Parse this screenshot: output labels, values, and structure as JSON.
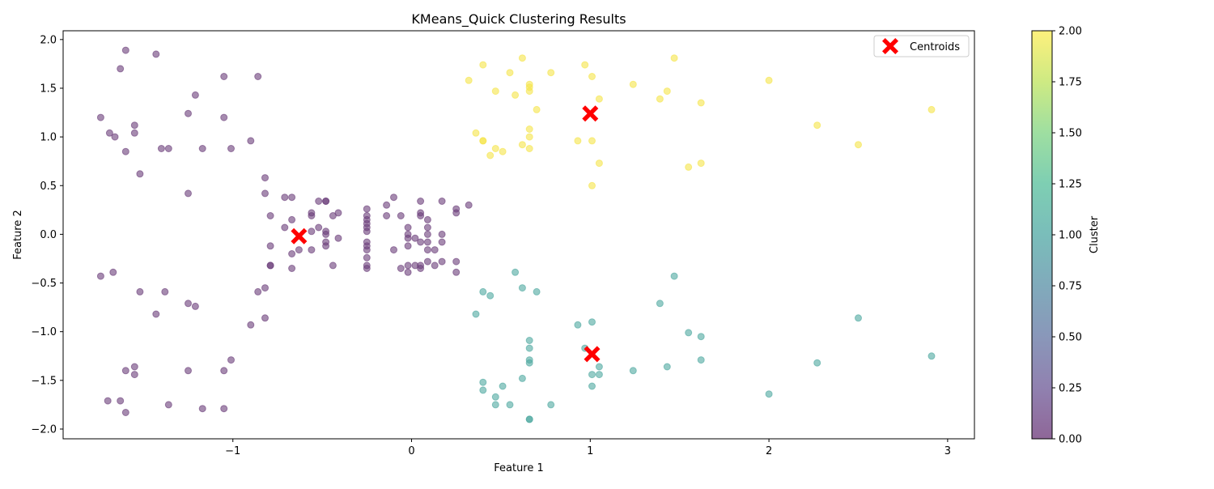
{
  "chart_data": {
    "type": "scatter",
    "title": "KMeans_Quick Clustering Results",
    "xlabel": "Feature 1",
    "ylabel": "Feature 2",
    "xlim": [
      -1.95,
      3.15
    ],
    "ylim": [
      -2.1,
      2.09
    ],
    "xticks": [
      -1,
      0,
      1,
      2,
      3
    ],
    "xtick_labels": [
      "−1",
      "0",
      "1",
      "2",
      "3"
    ],
    "yticks": [
      -2.0,
      -1.5,
      -1.0,
      -0.5,
      0.0,
      0.5,
      1.0,
      1.5,
      2.0
    ],
    "ytick_labels": [
      "−2.0",
      "−1.5",
      "−1.0",
      "−0.5",
      "0.0",
      "0.5",
      "1.0",
      "1.5",
      "2.0"
    ],
    "grid": false,
    "legend": {
      "position": "upper right",
      "entries": [
        "Centroids"
      ]
    },
    "colorbar": {
      "label": "Cluster",
      "range": [
        0,
        2
      ],
      "ticks": [
        0,
        0.25,
        0.5,
        0.75,
        1.0,
        1.25,
        1.5,
        1.75,
        2.0
      ],
      "tick_labels": [
        "0.00",
        "0.25",
        "0.50",
        "0.75",
        "1.00",
        "1.25",
        "1.50",
        "1.75",
        "2.00"
      ],
      "colormap": "viridis"
    },
    "cluster_colors": [
      "#6a3d7a",
      "#4fa8a0",
      "#f5e54a"
    ],
    "point_alpha": 0.6,
    "series": [
      {
        "cluster": 0,
        "points": [
          [
            -1.6,
            1.89
          ],
          [
            -1.43,
            1.85
          ],
          [
            -1.63,
            1.7
          ],
          [
            -1.05,
            1.62
          ],
          [
            -0.86,
            1.62
          ],
          [
            -1.21,
            1.43
          ],
          [
            -1.74,
            1.2
          ],
          [
            -1.25,
            1.24
          ],
          [
            -1.05,
            1.2
          ],
          [
            -1.55,
            1.12
          ],
          [
            -1.69,
            1.04
          ],
          [
            -1.55,
            1.04
          ],
          [
            -1.66,
            1.0
          ],
          [
            -0.9,
            0.96
          ],
          [
            -1.6,
            0.85
          ],
          [
            -1.4,
            0.88
          ],
          [
            -1.36,
            0.88
          ],
          [
            -1.17,
            0.88
          ],
          [
            -1.01,
            0.88
          ],
          [
            -1.52,
            0.62
          ],
          [
            -0.82,
            0.58
          ],
          [
            -1.25,
            0.42
          ],
          [
            -0.82,
            0.42
          ],
          [
            -0.71,
            0.38
          ],
          [
            -0.67,
            0.38
          ],
          [
            -0.52,
            0.34
          ],
          [
            -0.48,
            0.34
          ],
          [
            -0.48,
            0.34
          ],
          [
            -0.56,
            0.22
          ],
          [
            -0.56,
            0.19
          ],
          [
            -0.79,
            0.19
          ],
          [
            -0.44,
            0.19
          ],
          [
            -0.41,
            0.22
          ],
          [
            -0.67,
            0.15
          ],
          [
            -0.71,
            0.07
          ],
          [
            -0.52,
            0.07
          ],
          [
            -0.56,
            0.03
          ],
          [
            -0.48,
            0.03
          ],
          [
            -0.48,
            0.0
          ],
          [
            -0.41,
            -0.04
          ],
          [
            -0.48,
            -0.08
          ],
          [
            -0.48,
            -0.12
          ],
          [
            -0.79,
            -0.12
          ],
          [
            -0.56,
            -0.16
          ],
          [
            -0.63,
            -0.16
          ],
          [
            -0.67,
            -0.2
          ],
          [
            -0.79,
            -0.32
          ],
          [
            -0.79,
            -0.32
          ],
          [
            -0.44,
            -0.32
          ],
          [
            -0.67,
            -0.35
          ],
          [
            -0.25,
            0.26
          ],
          [
            -0.25,
            0.19
          ],
          [
            -0.25,
            0.15
          ],
          [
            -0.25,
            0.11
          ],
          [
            -0.25,
            0.07
          ],
          [
            -0.25,
            0.03
          ],
          [
            -0.25,
            -0.08
          ],
          [
            -0.25,
            -0.12
          ],
          [
            -0.25,
            -0.16
          ],
          [
            -0.25,
            -0.24
          ],
          [
            -0.25,
            -0.32
          ],
          [
            -0.25,
            -0.35
          ],
          [
            -0.14,
            0.3
          ],
          [
            -0.1,
            0.38
          ],
          [
            -0.14,
            0.19
          ],
          [
            -0.06,
            0.19
          ],
          [
            -0.1,
            -0.16
          ],
          [
            -0.06,
            -0.35
          ],
          [
            -0.02,
            0.07
          ],
          [
            -0.02,
            0.0
          ],
          [
            -0.02,
            -0.04
          ],
          [
            -0.02,
            -0.12
          ],
          [
            -0.02,
            -0.32
          ],
          [
            -0.02,
            -0.39
          ],
          [
            0.02,
            -0.04
          ],
          [
            0.02,
            -0.32
          ],
          [
            0.05,
            0.34
          ],
          [
            0.05,
            0.22
          ],
          [
            0.05,
            0.19
          ],
          [
            0.05,
            -0.08
          ],
          [
            0.05,
            -0.32
          ],
          [
            0.05,
            -0.35
          ],
          [
            0.09,
            0.15
          ],
          [
            0.09,
            0.07
          ],
          [
            0.09,
            0.0
          ],
          [
            0.09,
            -0.08
          ],
          [
            0.09,
            -0.16
          ],
          [
            0.09,
            -0.28
          ],
          [
            0.13,
            -0.16
          ],
          [
            0.13,
            -0.32
          ],
          [
            0.17,
            0.34
          ],
          [
            0.17,
            0.0
          ],
          [
            0.17,
            -0.08
          ],
          [
            0.17,
            -0.28
          ],
          [
            0.25,
            0.26
          ],
          [
            0.25,
            0.22
          ],
          [
            0.25,
            -0.28
          ],
          [
            0.25,
            -0.39
          ],
          [
            0.32,
            0.3
          ],
          [
            -1.74,
            -0.43
          ],
          [
            -1.67,
            -0.39
          ],
          [
            -1.52,
            -0.59
          ],
          [
            -1.38,
            -0.59
          ],
          [
            -0.86,
            -0.59
          ],
          [
            -0.82,
            -0.55
          ],
          [
            -1.25,
            -0.71
          ],
          [
            -1.21,
            -0.74
          ],
          [
            -1.43,
            -0.82
          ],
          [
            -0.82,
            -0.86
          ],
          [
            -0.9,
            -0.93
          ],
          [
            -1.01,
            -1.29
          ],
          [
            -1.55,
            -1.36
          ],
          [
            -1.6,
            -1.4
          ],
          [
            -1.25,
            -1.4
          ],
          [
            -1.05,
            -1.4
          ],
          [
            -1.55,
            -1.44
          ],
          [
            -1.7,
            -1.71
          ],
          [
            -1.63,
            -1.71
          ],
          [
            -1.36,
            -1.75
          ],
          [
            -1.17,
            -1.79
          ],
          [
            -1.05,
            -1.79
          ],
          [
            -1.6,
            -1.83
          ]
        ]
      },
      {
        "cluster": 1,
        "points": [
          [
            0.58,
            -0.39
          ],
          [
            1.47,
            -0.43
          ],
          [
            0.62,
            -0.55
          ],
          [
            0.4,
            -0.59
          ],
          [
            0.7,
            -0.59
          ],
          [
            0.44,
            -0.63
          ],
          [
            1.39,
            -0.71
          ],
          [
            0.36,
            -0.82
          ],
          [
            2.5,
            -0.86
          ],
          [
            1.01,
            -0.9
          ],
          [
            0.93,
            -0.93
          ],
          [
            1.55,
            -1.01
          ],
          [
            1.62,
            -1.05
          ],
          [
            0.66,
            -1.09
          ],
          [
            0.97,
            -1.17
          ],
          [
            0.66,
            -1.17
          ],
          [
            2.91,
            -1.25
          ],
          [
            1.62,
            -1.29
          ],
          [
            0.66,
            -1.29
          ],
          [
            0.66,
            -1.32
          ],
          [
            2.27,
            -1.32
          ],
          [
            1.05,
            -1.36
          ],
          [
            1.43,
            -1.36
          ],
          [
            1.24,
            -1.4
          ],
          [
            1.01,
            -1.44
          ],
          [
            1.05,
            -1.44
          ],
          [
            0.62,
            -1.48
          ],
          [
            0.4,
            -1.52
          ],
          [
            1.01,
            -1.56
          ],
          [
            0.51,
            -1.56
          ],
          [
            0.4,
            -1.6
          ],
          [
            2.0,
            -1.64
          ],
          [
            0.47,
            -1.67
          ],
          [
            0.47,
            -1.75
          ],
          [
            0.55,
            -1.75
          ],
          [
            0.78,
            -1.75
          ],
          [
            0.66,
            -1.9
          ],
          [
            0.66,
            -1.9
          ]
        ]
      },
      {
        "cluster": 2,
        "points": [
          [
            0.62,
            1.81
          ],
          [
            1.47,
            1.81
          ],
          [
            0.4,
            1.74
          ],
          [
            0.97,
            1.74
          ],
          [
            0.55,
            1.66
          ],
          [
            0.78,
            1.66
          ],
          [
            1.01,
            1.62
          ],
          [
            0.32,
            1.58
          ],
          [
            2.0,
            1.58
          ],
          [
            0.66,
            1.54
          ],
          [
            1.24,
            1.54
          ],
          [
            0.66,
            1.51
          ],
          [
            0.47,
            1.47
          ],
          [
            0.66,
            1.47
          ],
          [
            1.43,
            1.47
          ],
          [
            0.58,
            1.43
          ],
          [
            1.05,
            1.39
          ],
          [
            1.39,
            1.39
          ],
          [
            1.62,
            1.35
          ],
          [
            0.7,
            1.28
          ],
          [
            2.91,
            1.28
          ],
          [
            2.27,
            1.12
          ],
          [
            0.66,
            1.08
          ],
          [
            0.36,
            1.04
          ],
          [
            0.66,
            1.0
          ],
          [
            0.4,
            0.96
          ],
          [
            0.4,
            0.96
          ],
          [
            0.93,
            0.96
          ],
          [
            1.01,
            0.96
          ],
          [
            0.62,
            0.92
          ],
          [
            2.5,
            0.92
          ],
          [
            0.47,
            0.88
          ],
          [
            0.66,
            0.88
          ],
          [
            0.51,
            0.85
          ],
          [
            0.44,
            0.81
          ],
          [
            1.05,
            0.73
          ],
          [
            1.62,
            0.73
          ],
          [
            1.55,
            0.69
          ],
          [
            1.01,
            0.5
          ]
        ]
      }
    ],
    "centroids": [
      [
        -0.63,
        -0.02
      ],
      [
        1.0,
        1.24
      ],
      [
        1.01,
        -1.23
      ]
    ]
  }
}
